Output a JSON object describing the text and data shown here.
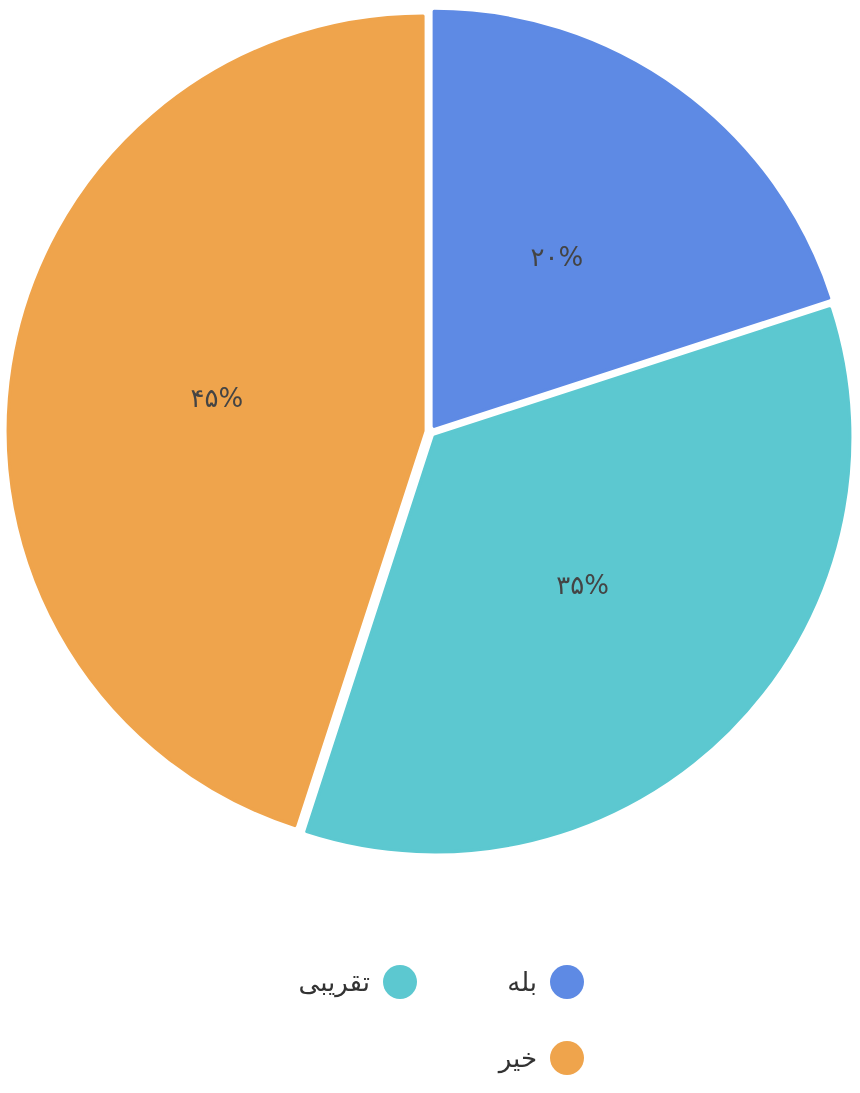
{
  "chart_data": {
    "type": "pie",
    "categories": [
      "بله",
      "تقریبی",
      "خیر"
    ],
    "values": [
      20,
      35,
      45
    ],
    "colors": [
      "#5e8ae4",
      "#5cc8d0",
      "#efa44c"
    ],
    "value_labels": [
      "۲۰%",
      "۳۵%",
      "۴۵%"
    ],
    "legend": "bottom"
  }
}
